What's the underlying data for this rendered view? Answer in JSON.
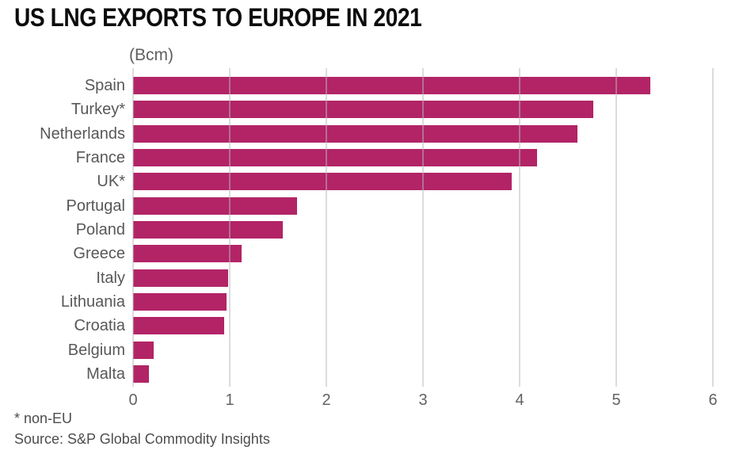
{
  "title": "US LNG EXPORTS TO EUROPE IN 2021",
  "footnote": "* non-EU",
  "source": "Source: S&P Global Commodity Insights",
  "colors": {
    "bar": "#b22466",
    "gridline": "rgba(185,185,185,0.5)",
    "label_gray": "#58585a",
    "title_black": "#0c0c0c"
  },
  "chart_data": {
    "type": "bar",
    "orientation": "horizontal",
    "title": "US LNG EXPORTS TO EUROPE IN 2021",
    "unit_label": "(Bcm)",
    "xlabel": "",
    "ylabel": "",
    "xlim": [
      0,
      6
    ],
    "xticks": [
      0,
      1,
      2,
      3,
      4,
      5,
      6
    ],
    "grid": true,
    "legend": false,
    "categories": [
      "Spain",
      "Turkey*",
      "Netherlands",
      "France",
      "UK*",
      "Portugal",
      "Poland",
      "Greece",
      "Italy",
      "Lithuania",
      "Croatia",
      "Belgium",
      "Malta"
    ],
    "values": [
      5.35,
      4.76,
      4.6,
      4.18,
      3.92,
      1.7,
      1.55,
      1.12,
      0.98,
      0.97,
      0.94,
      0.21,
      0.16
    ]
  }
}
